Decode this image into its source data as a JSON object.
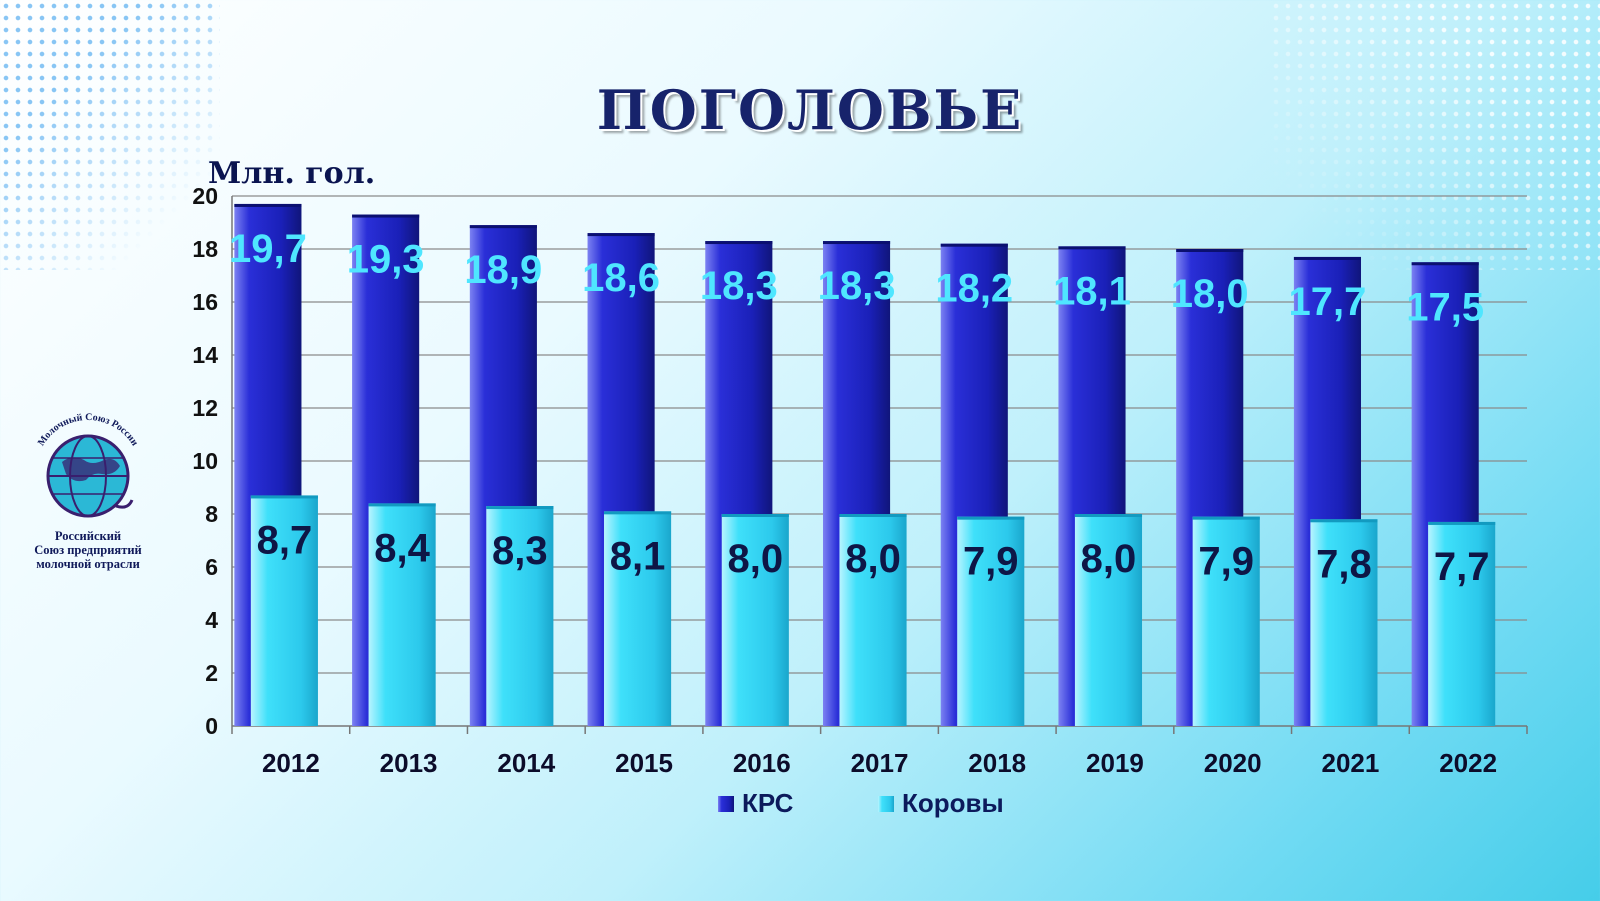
{
  "header": {
    "title": "ПОГОЛОВЬЕ"
  },
  "logo": {
    "arc_text": "Молочный Союз России",
    "lines": [
      "Российский",
      "Союз предприятий",
      "молочной отрасли"
    ]
  },
  "colors": {
    "krs": "#1c22c8",
    "cows": "#33d9f5",
    "krs_label": "#4fe6ff",
    "cows_label": "#0e1646",
    "grid": "#8a8a8a"
  },
  "chart_data": {
    "type": "bar",
    "title": "",
    "xlabel": "",
    "ylabel": "Млн. гол.",
    "ylim": [
      0,
      20
    ],
    "y_ticks": [
      0,
      2,
      4,
      6,
      8,
      10,
      12,
      14,
      16,
      18,
      20
    ],
    "grid": true,
    "legend_position": "bottom",
    "categories": [
      "2012",
      "2013",
      "2014",
      "2015",
      "2016",
      "2017",
      "2018",
      "2019",
      "2020",
      "2021",
      "2022"
    ],
    "series": [
      {
        "name": "КРС",
        "values": [
          19.7,
          19.3,
          18.9,
          18.6,
          18.3,
          18.3,
          18.2,
          18.1,
          18.0,
          17.7,
          17.5
        ],
        "labels": [
          "19,7",
          "19,3",
          "18,9",
          "18,6",
          "18,3",
          "18,3",
          "18,2",
          "18,1",
          "18,0",
          "17,7",
          "17,5"
        ]
      },
      {
        "name": "Коровы",
        "values": [
          8.7,
          8.4,
          8.3,
          8.1,
          8.0,
          8.0,
          7.9,
          8.0,
          7.9,
          7.8,
          7.7
        ],
        "labels": [
          "8,7",
          "8,4",
          "8,3",
          "8,1",
          "8,0",
          "8,0",
          "7,9",
          "8,0",
          "7,9",
          "7,8",
          "7,7"
        ]
      }
    ]
  }
}
